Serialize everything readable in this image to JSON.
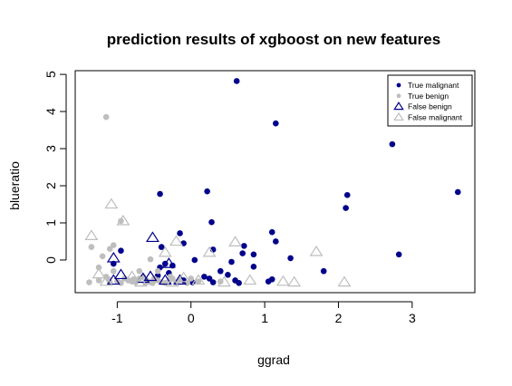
{
  "chart_data": {
    "type": "scatter",
    "title": "prediction results of xgboost on new features",
    "xlabel": "ggrad",
    "ylabel": "blueratio",
    "xlim": [
      -1.57,
      3.85
    ],
    "ylim": [
      -0.88,
      5.1
    ],
    "xticks": [
      "-1",
      "0",
      "1",
      "2",
      "3"
    ],
    "yticks": [
      "0",
      "1",
      "2",
      "3",
      "4",
      "5"
    ],
    "grid": false,
    "legend_position": "top-right",
    "series": [
      {
        "name": "True malignant",
        "marker": "filled-circle",
        "color": "#00008B",
        "points": [
          [
            0.62,
            4.82
          ],
          [
            1.15,
            3.68
          ],
          [
            2.73,
            3.12
          ],
          [
            3.62,
            1.83
          ],
          [
            2.12,
            1.75
          ],
          [
            0.22,
            1.85
          ],
          [
            -0.42,
            1.78
          ],
          [
            2.1,
            1.4
          ],
          [
            0.28,
            1.02
          ],
          [
            1.1,
            0.75
          ],
          [
            -0.15,
            0.72
          ],
          [
            -0.1,
            0.45
          ],
          [
            1.15,
            0.5
          ],
          [
            0.72,
            0.38
          ],
          [
            -0.4,
            0.35
          ],
          [
            0.3,
            0.28
          ],
          [
            0.7,
            0.18
          ],
          [
            0.85,
            0.15
          ],
          [
            1.35,
            0.05
          ],
          [
            0.55,
            -0.05
          ],
          [
            -0.95,
            0.25
          ],
          [
            2.82,
            0.15
          ],
          [
            0.05,
            0.0
          ],
          [
            -0.35,
            -0.1
          ],
          [
            -0.25,
            -0.15
          ],
          [
            -0.42,
            -0.2
          ],
          [
            0.85,
            -0.18
          ],
          [
            0.4,
            -0.3
          ],
          [
            0.18,
            -0.45
          ],
          [
            -0.3,
            -0.35
          ],
          [
            -0.45,
            -0.42
          ],
          [
            1.1,
            -0.52
          ],
          [
            1.05,
            -0.58
          ],
          [
            0.6,
            -0.55
          ],
          [
            0.65,
            -0.62
          ],
          [
            -0.1,
            -0.55
          ],
          [
            0.25,
            -0.5
          ],
          [
            0.02,
            -0.6
          ],
          [
            -1.05,
            -0.1
          ],
          [
            1.8,
            -0.3
          ],
          [
            0.5,
            -0.4
          ],
          [
            0.3,
            -0.6
          ]
        ]
      },
      {
        "name": "True benign",
        "marker": "filled-circle",
        "color": "#BEBEBE",
        "points": [
          [
            -1.15,
            3.85
          ],
          [
            -0.95,
            1.05
          ],
          [
            -1.35,
            0.35
          ],
          [
            -1.1,
            0.3
          ],
          [
            -1.05,
            0.4
          ],
          [
            -1.2,
            0.1
          ],
          [
            -1.25,
            -0.2
          ],
          [
            -1.15,
            -0.45
          ],
          [
            -1.05,
            -0.3
          ],
          [
            -0.9,
            -0.5
          ],
          [
            -0.85,
            -0.55
          ],
          [
            -0.75,
            -0.6
          ],
          [
            -0.7,
            -0.5
          ],
          [
            -0.65,
            -0.45
          ],
          [
            -0.6,
            -0.55
          ],
          [
            -0.55,
            -0.6
          ],
          [
            -0.5,
            -0.5
          ],
          [
            -0.45,
            -0.55
          ],
          [
            -0.4,
            -0.6
          ],
          [
            -0.3,
            -0.58
          ],
          [
            -0.25,
            -0.5
          ],
          [
            -0.2,
            -0.6
          ],
          [
            -0.15,
            -0.55
          ],
          [
            -0.05,
            -0.62
          ],
          [
            0.0,
            -0.5
          ],
          [
            0.1,
            -0.58
          ],
          [
            -1.38,
            -0.6
          ],
          [
            -1.25,
            -0.55
          ],
          [
            -1.1,
            -0.6
          ],
          [
            -0.95,
            -0.62
          ],
          [
            -0.8,
            -0.58
          ],
          [
            -0.52,
            -0.62
          ],
          [
            -0.35,
            -0.62
          ],
          [
            -0.55,
            0.02
          ],
          [
            -0.7,
            -0.3
          ],
          [
            -1.0,
            -0.58
          ],
          [
            -0.62,
            -0.62
          ],
          [
            -0.28,
            -0.45
          ],
          [
            -0.78,
            -0.52
          ],
          [
            -1.12,
            -0.52
          ],
          [
            0.4,
            -0.58
          ],
          [
            -0.45,
            -0.3
          ]
        ]
      },
      {
        "name": "False benign",
        "marker": "open-triangle",
        "color": "#00008B",
        "points": [
          [
            -1.05,
            0.05
          ],
          [
            -0.52,
            0.6
          ],
          [
            -0.3,
            -0.1
          ],
          [
            -0.95,
            -0.4
          ],
          [
            -0.55,
            -0.45
          ],
          [
            -1.05,
            -0.55
          ],
          [
            -0.65,
            -0.5
          ],
          [
            -0.35,
            -0.55
          ],
          [
            -0.15,
            -0.55
          ]
        ]
      },
      {
        "name": "False malignant",
        "marker": "open-triangle",
        "color": "#BEBEBE",
        "points": [
          [
            -1.35,
            0.65
          ],
          [
            -1.08,
            1.5
          ],
          [
            -0.92,
            1.05
          ],
          [
            -0.2,
            0.5
          ],
          [
            0.25,
            0.2
          ],
          [
            0.6,
            0.48
          ],
          [
            1.7,
            0.22
          ],
          [
            -1.25,
            -0.38
          ],
          [
            -0.8,
            -0.45
          ],
          [
            -0.35,
            0.2
          ],
          [
            -0.1,
            -0.48
          ],
          [
            0.1,
            -0.55
          ],
          [
            0.8,
            -0.55
          ],
          [
            1.25,
            -0.58
          ],
          [
            1.4,
            -0.6
          ],
          [
            2.08,
            -0.6
          ],
          [
            0.45,
            -0.6
          ],
          [
            -0.68,
            -0.6
          ],
          [
            -1.15,
            -0.58
          ],
          [
            -0.25,
            -0.6
          ]
        ]
      }
    ]
  }
}
